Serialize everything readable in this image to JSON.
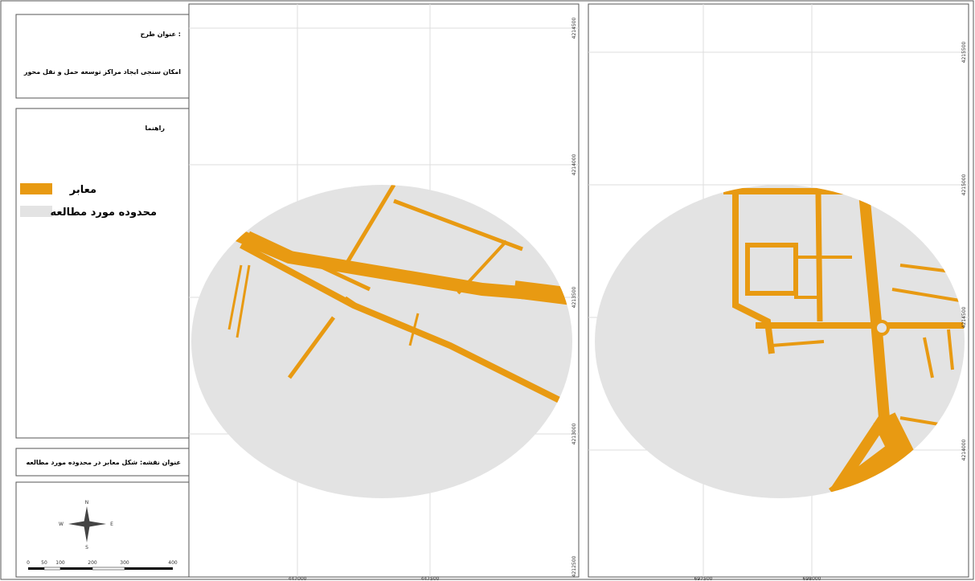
{
  "panel": {
    "plan_heading": "عنوان طرح :",
    "plan_title": "امکان سنجی ایجاد مراکز توسعه حمل و نقل محور",
    "legend_heading": "راهنما",
    "legend": [
      "معابر",
      "محدوده مورد مطالعه"
    ],
    "map_title": "عنوان نقشه: شکل معابر در محدوده مورد مطالعه",
    "compass": [
      "N",
      "S",
      "E",
      "W"
    ],
    "scale": [
      "0",
      "50",
      "100",
      "200",
      "300",
      "400"
    ]
  },
  "map_left": {
    "y_labels": [
      "4214500",
      "4214000",
      "4213500",
      "4213000",
      "4212500"
    ],
    "x_labels": [
      "447000",
      "447500"
    ]
  },
  "map_right": {
    "y_labels": [
      "4215500",
      "4215000",
      "4214500",
      "4214000"
    ],
    "x_labels": [
      "697500",
      "698000"
    ]
  }
}
